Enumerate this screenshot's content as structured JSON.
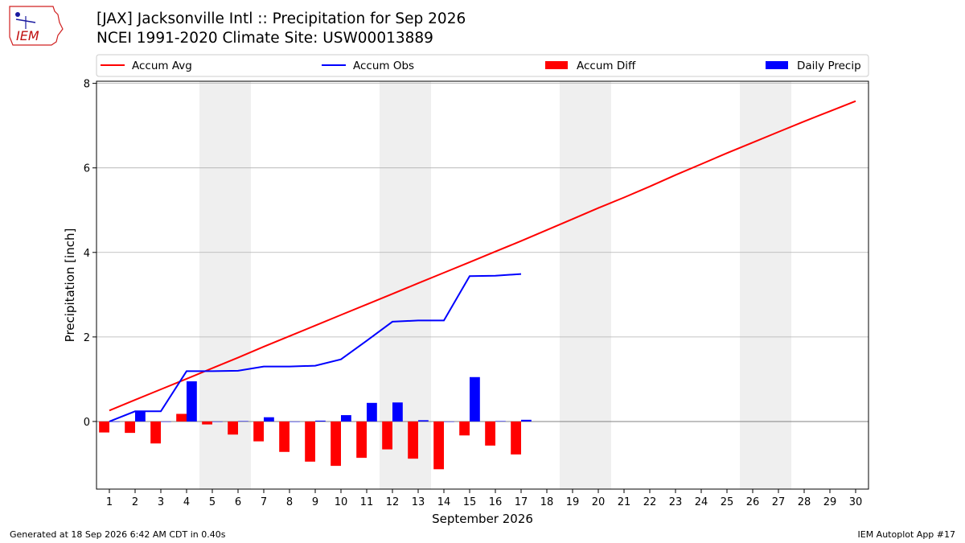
{
  "header": {
    "title_line1": "[JAX] Jacksonville Intl :: Precipitation for Sep 2026",
    "title_line2": "NCEI 1991-2020 Climate Site: USW00013889",
    "logo_text": "IEM"
  },
  "footer": {
    "generated": "Generated at 18 Sep 2026 6:42 AM CDT in 0.40s",
    "app": "IEM Autoplot App #17"
  },
  "colors": {
    "avg": "#ff0000",
    "obs": "#0000ff",
    "diff": "#ff0000",
    "daily": "#0000ff",
    "weekend_shade": "#efefef",
    "grid": "#b0b0b0"
  },
  "chart_data": {
    "type": "bar",
    "xlabel": "September 2026",
    "ylabel": "Precipitation [inch]",
    "xlim": [
      0.5,
      30.5
    ],
    "ylim": [
      -1.6,
      8.05
    ],
    "yticks": [
      0,
      2,
      4,
      6,
      8
    ],
    "grid": "horizontal",
    "legend_placement": "top",
    "legend": [
      "Accum Avg",
      "Accum Obs",
      "Accum Diff",
      "Daily Precip"
    ],
    "days": [
      1,
      2,
      3,
      4,
      5,
      6,
      7,
      8,
      9,
      10,
      11,
      12,
      13,
      14,
      15,
      16,
      17,
      18,
      19,
      20,
      21,
      22,
      23,
      24,
      25,
      26,
      27,
      28,
      29,
      30
    ],
    "weekend_spans": [
      [
        5,
        6
      ],
      [
        12,
        13
      ],
      [
        19,
        20
      ],
      [
        26,
        27
      ]
    ],
    "series": [
      {
        "name": "Accum Avg",
        "type": "line",
        "x": [
          1,
          2,
          3,
          4,
          5,
          6,
          7,
          8,
          9,
          10,
          11,
          12,
          13,
          14,
          15,
          16,
          17,
          18,
          19,
          20,
          21,
          22,
          23,
          24,
          25,
          26,
          27,
          28,
          29,
          30
        ],
        "values": [
          0.26,
          0.51,
          0.76,
          1.01,
          1.26,
          1.51,
          1.77,
          2.02,
          2.27,
          2.52,
          2.77,
          3.02,
          3.27,
          3.52,
          3.77,
          4.02,
          4.27,
          4.53,
          4.79,
          5.05,
          5.3,
          5.56,
          5.83,
          6.09,
          6.35,
          6.6,
          6.85,
          7.1,
          7.34,
          7.58
        ]
      },
      {
        "name": "Accum Obs",
        "type": "line",
        "x": [
          1,
          2,
          3,
          4,
          5,
          6,
          7,
          8,
          9,
          10,
          11,
          12,
          13,
          14,
          15,
          16,
          17
        ],
        "values": [
          0.0,
          0.24,
          0.24,
          1.19,
          1.19,
          1.2,
          1.3,
          1.3,
          1.32,
          1.47,
          1.91,
          2.36,
          2.39,
          2.39,
          3.44,
          3.45,
          3.49
        ]
      },
      {
        "name": "Accum Diff",
        "type": "bar",
        "x": [
          1,
          2,
          3,
          4,
          5,
          6,
          7,
          8,
          9,
          10,
          11,
          12,
          13,
          14,
          15,
          16,
          17
        ],
        "values": [
          -0.26,
          -0.27,
          -0.52,
          0.18,
          -0.07,
          -0.31,
          -0.47,
          -0.72,
          -0.95,
          -1.05,
          -0.86,
          -0.66,
          -0.88,
          -1.13,
          -0.33,
          -0.57,
          -0.78
        ]
      },
      {
        "name": "Daily Precip",
        "type": "bar",
        "x": [
          1,
          2,
          3,
          4,
          5,
          6,
          7,
          8,
          9,
          10,
          11,
          12,
          13,
          14,
          15,
          16,
          17
        ],
        "values": [
          0.0,
          0.24,
          0.0,
          0.95,
          0.0,
          0.01,
          0.1,
          0.0,
          0.02,
          0.15,
          0.44,
          0.45,
          0.03,
          0.0,
          1.05,
          0.01,
          0.04
        ]
      }
    ]
  }
}
